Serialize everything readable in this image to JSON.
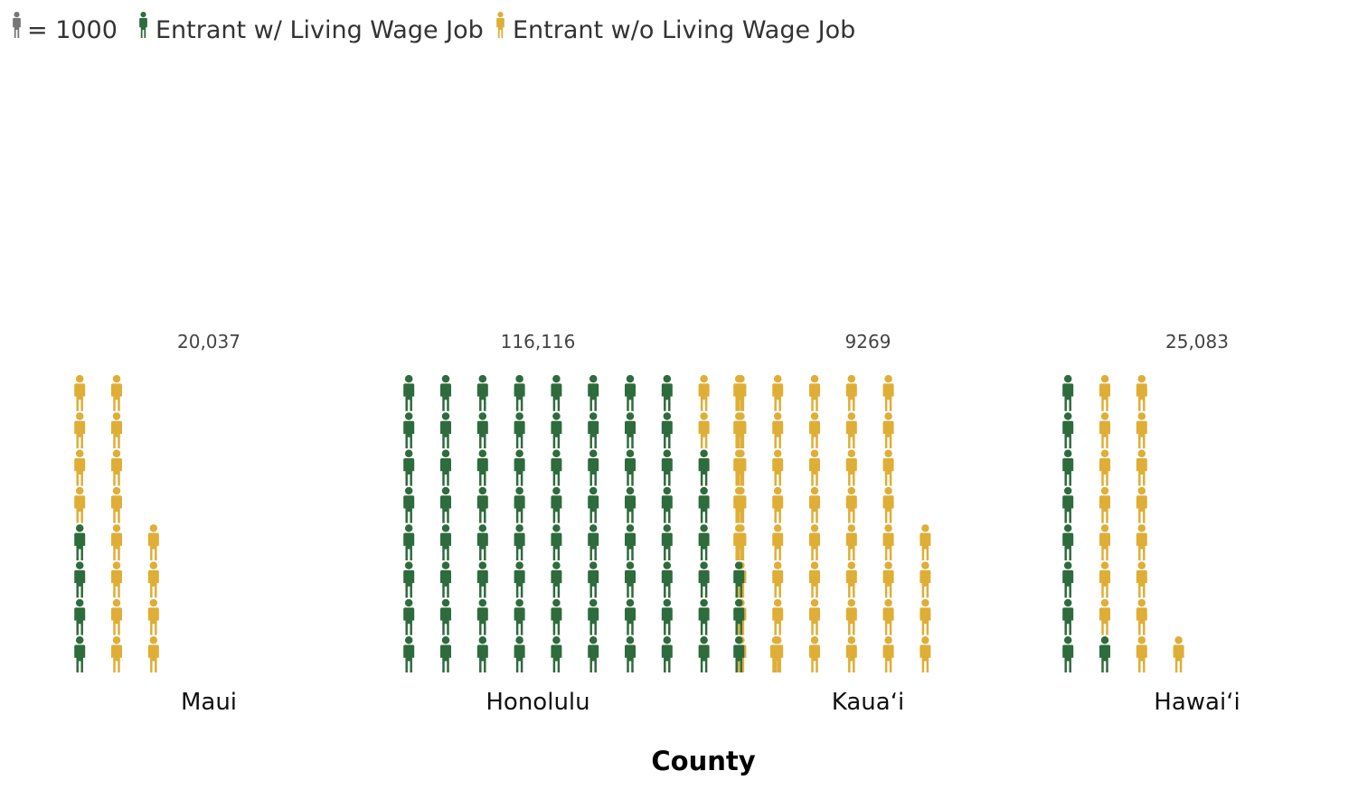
{
  "legend": {
    "unit_label": "= 1000",
    "with_label": "Entrant w/ Living Wage Job",
    "without_label": "Entrant w/o Living Wage Job"
  },
  "colors": {
    "with": "#2e6b3d",
    "without": "#dfae36",
    "unit": "#777777"
  },
  "chart_data": {
    "type": "bar",
    "subtype": "isotype pictograph (each figure = 1000)",
    "xlabel": "County",
    "ylabel": "",
    "unit_per_icon": 1000,
    "categories": [
      "Maui",
      "Honolulu",
      "Kauaʻi",
      "Hawaiʻi"
    ],
    "totals": [
      20037,
      116116,
      9269,
      25083
    ],
    "total_labels": [
      "20,037",
      "116,116",
      "9269",
      "25,083"
    ],
    "series": [
      {
        "name": "Entrant w/ Living Wage Job",
        "values": [
          4000,
          70600,
          3300,
          9300
        ]
      },
      {
        "name": "Entrant w/o Living Wage Job",
        "values": [
          16037,
          45516,
          5969,
          15783
        ]
      }
    ],
    "legend_position": "top-left",
    "grid": false
  }
}
